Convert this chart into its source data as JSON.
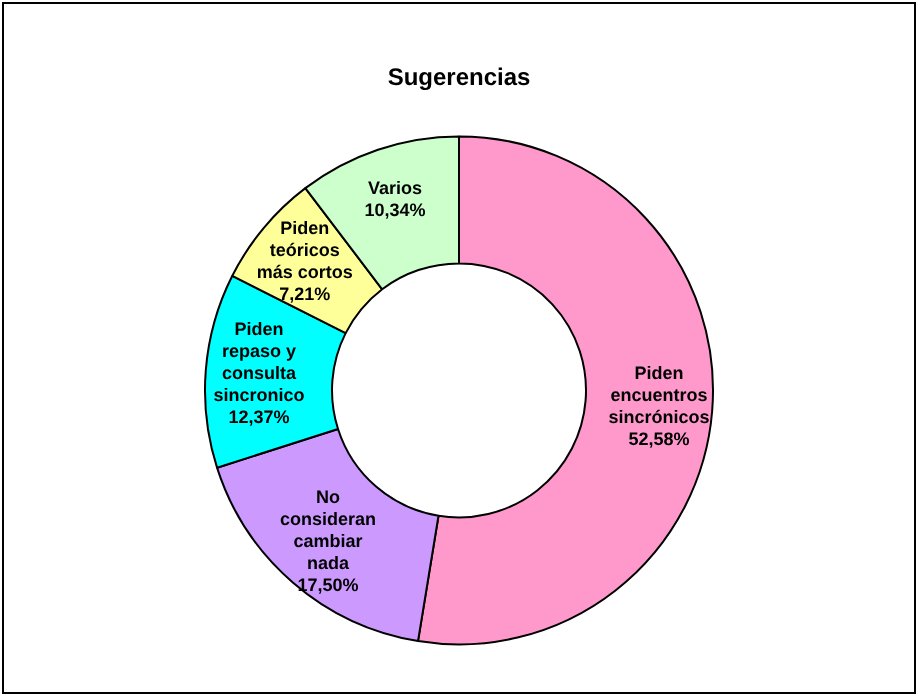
{
  "chart_data": {
    "type": "donut",
    "title": "Sugerencias",
    "categories": [
      "Piden encuentros sincrónicos",
      "No consideran cambiar nada",
      "Piden repaso y consulta sincronico",
      "Piden teóricos más cortos",
      "Varios"
    ],
    "values": [
      52.58,
      17.5,
      12.37,
      7.21,
      10.34
    ],
    "value_labels": [
      "52,58%",
      "17,50%",
      "12,37%",
      "7,21%",
      "10,34%"
    ],
    "colors": [
      "#ff99cc",
      "#cc99ff",
      "#00ffff",
      "#ffff99",
      "#ccffcc"
    ],
    "legend": false
  }
}
